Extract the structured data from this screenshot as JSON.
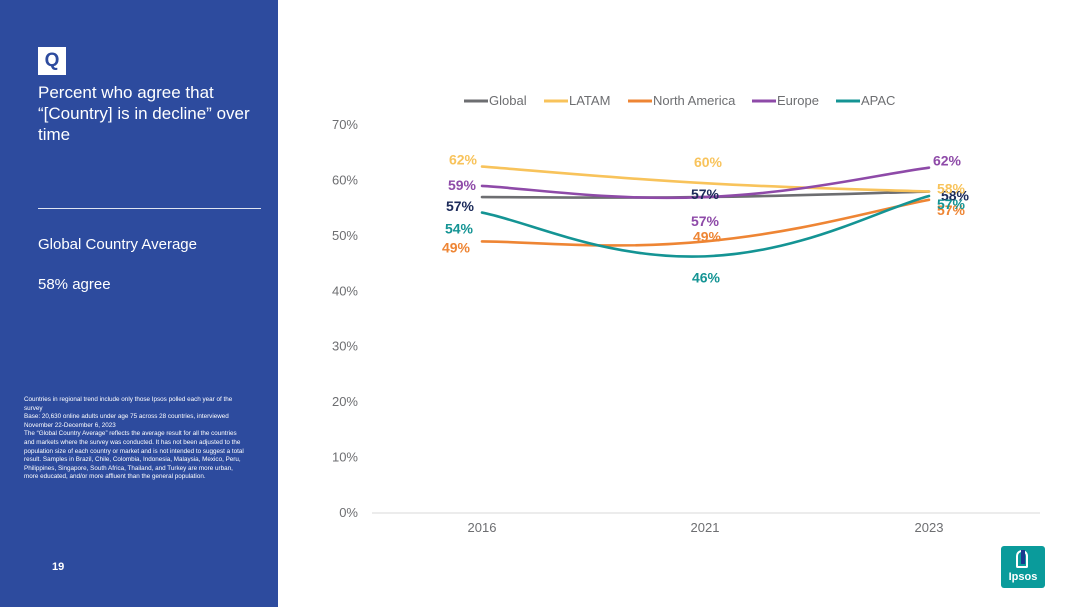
{
  "slide": {
    "q_label": "Q",
    "question": "Percent who agree that “[Country] is in decline” over time",
    "average_label": "Global Country Average",
    "average_value": "58% agree",
    "footnote": [
      "Countries in regional trend include only those Ipsos polled each year of the survey",
      "Base: 20,630 online adults under age 75 across 28 countries, interviewed November 22-December 6, 2023",
      "The “Global Country Average” reflects the average result for all the countries and markets where the survey was conducted. It has not been adjusted to the population size of each country or market and is not intended to suggest a total result. Samples in Brazil, Chile, Colombia, Indonesia, Malaysia, Mexico, Peru, Philippines, Singapore, South Africa, Thailand, and Turkey are more urban, more educated, and/or more affluent than the general population."
    ],
    "page_number": "19",
    "logo_text": "Ipsos"
  },
  "chart_data": {
    "type": "line",
    "title": "",
    "xlabel": "",
    "ylabel": "",
    "categories": [
      "2016",
      "2021",
      "2023"
    ],
    "ylim": [
      0,
      70
    ],
    "yticks": [
      "0%",
      "10%",
      "20%",
      "30%",
      "40%",
      "50%",
      "60%",
      "70%"
    ],
    "legend_position": "top",
    "series": [
      {
        "name": "Global",
        "color": "#6d6e71",
        "values": [
          57,
          57,
          58
        ],
        "labels": [
          "57%",
          "57%",
          "58%"
        ],
        "label_color": "#1b2a5a"
      },
      {
        "name": "LATAM",
        "color": "#f8c35b",
        "values": [
          62.5,
          59.5,
          58
        ],
        "labels": [
          "62%",
          "60%",
          "58%"
        ],
        "label_color": "#f8c35b"
      },
      {
        "name": "North America",
        "color": "#ee8534",
        "values": [
          49,
          49,
          56.5
        ],
        "labels": [
          "49%",
          "49%",
          "57%"
        ],
        "label_color": "#ee8534"
      },
      {
        "name": "Europe",
        "color": "#8e4aa8",
        "values": [
          59,
          57,
          62.3
        ],
        "labels": [
          "59%",
          "57%",
          "62%"
        ],
        "label_color": "#8e4aa8"
      },
      {
        "name": "APAC",
        "color": "#149494",
        "values": [
          54.2,
          46.3,
          57.2
        ],
        "labels": [
          "54%",
          "46%",
          "57%"
        ],
        "label_color": "#149494"
      }
    ]
  }
}
